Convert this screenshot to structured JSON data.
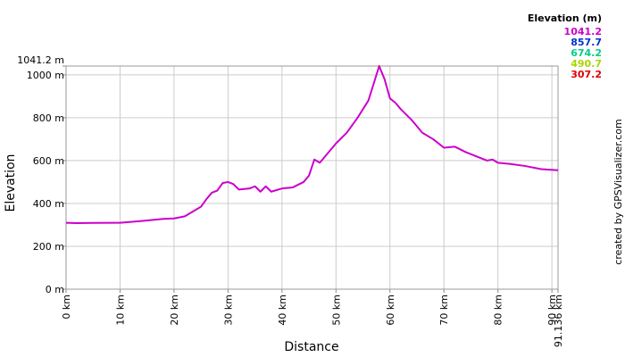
{
  "chart_data": {
    "type": "line",
    "xlabel": "Distance",
    "ylabel": "Elevation",
    "credit": "created by GPSVisualizer.com",
    "legend_title": "Elevation (m)",
    "color_scale": [
      {
        "value": 1041.2,
        "color": "#cc00cc"
      },
      {
        "value": 857.7,
        "color": "#0033cc"
      },
      {
        "value": 674.2,
        "color": "#00cc88"
      },
      {
        "value": 490.7,
        "color": "#aad400"
      },
      {
        "value": 307.2,
        "color": "#dd0000"
      }
    ],
    "x": [
      0,
      2,
      5,
      10,
      14,
      18,
      20,
      22,
      24,
      25,
      26,
      27,
      28,
      29,
      30,
      31,
      32,
      34,
      35,
      36,
      37,
      38,
      40,
      42,
      44,
      45,
      46,
      47,
      48,
      50,
      52,
      54,
      55,
      56,
      57,
      58,
      59,
      60,
      61,
      62,
      64,
      65,
      66,
      68,
      70,
      72,
      74,
      76,
      78,
      79,
      80,
      82,
      85,
      88,
      91.136
    ],
    "values": [
      310,
      308,
      309,
      310,
      318,
      328,
      330,
      340,
      370,
      385,
      420,
      450,
      460,
      495,
      500,
      490,
      465,
      470,
      480,
      455,
      480,
      455,
      470,
      475,
      500,
      530,
      605,
      590,
      620,
      680,
      730,
      800,
      840,
      880,
      960,
      1041.2,
      980,
      890,
      870,
      840,
      790,
      760,
      730,
      700,
      660,
      665,
      640,
      620,
      600,
      605,
      590,
      585,
      575,
      560,
      555
    ],
    "xlim": [
      0,
      91.136
    ],
    "xticks": [
      {
        "value": 0,
        "label": "0 km"
      },
      {
        "value": 10,
        "label": "10 km"
      },
      {
        "value": 20,
        "label": "20 km"
      },
      {
        "value": 30,
        "label": "30 km"
      },
      {
        "value": 40,
        "label": "40 km"
      },
      {
        "value": 50,
        "label": "50 km"
      },
      {
        "value": 60,
        "label": "60 km"
      },
      {
        "value": 70,
        "label": "70 km"
      },
      {
        "value": 80,
        "label": "80 km"
      },
      {
        "value": 90,
        "label": "90 km"
      },
      {
        "value": 91.136,
        "label": "91.136 km"
      }
    ],
    "ylim": [
      0,
      1041.2
    ],
    "yticks": [
      {
        "value": 0,
        "label": "0 m"
      },
      {
        "value": 200,
        "label": "200 m"
      },
      {
        "value": 400,
        "label": "400 m"
      },
      {
        "value": 600,
        "label": "600 m"
      },
      {
        "value": 800,
        "label": "800 m"
      },
      {
        "value": 1000,
        "label": "1000 m"
      },
      {
        "value": 1041.2,
        "label": "1041.2 m"
      }
    ],
    "grid": true
  }
}
